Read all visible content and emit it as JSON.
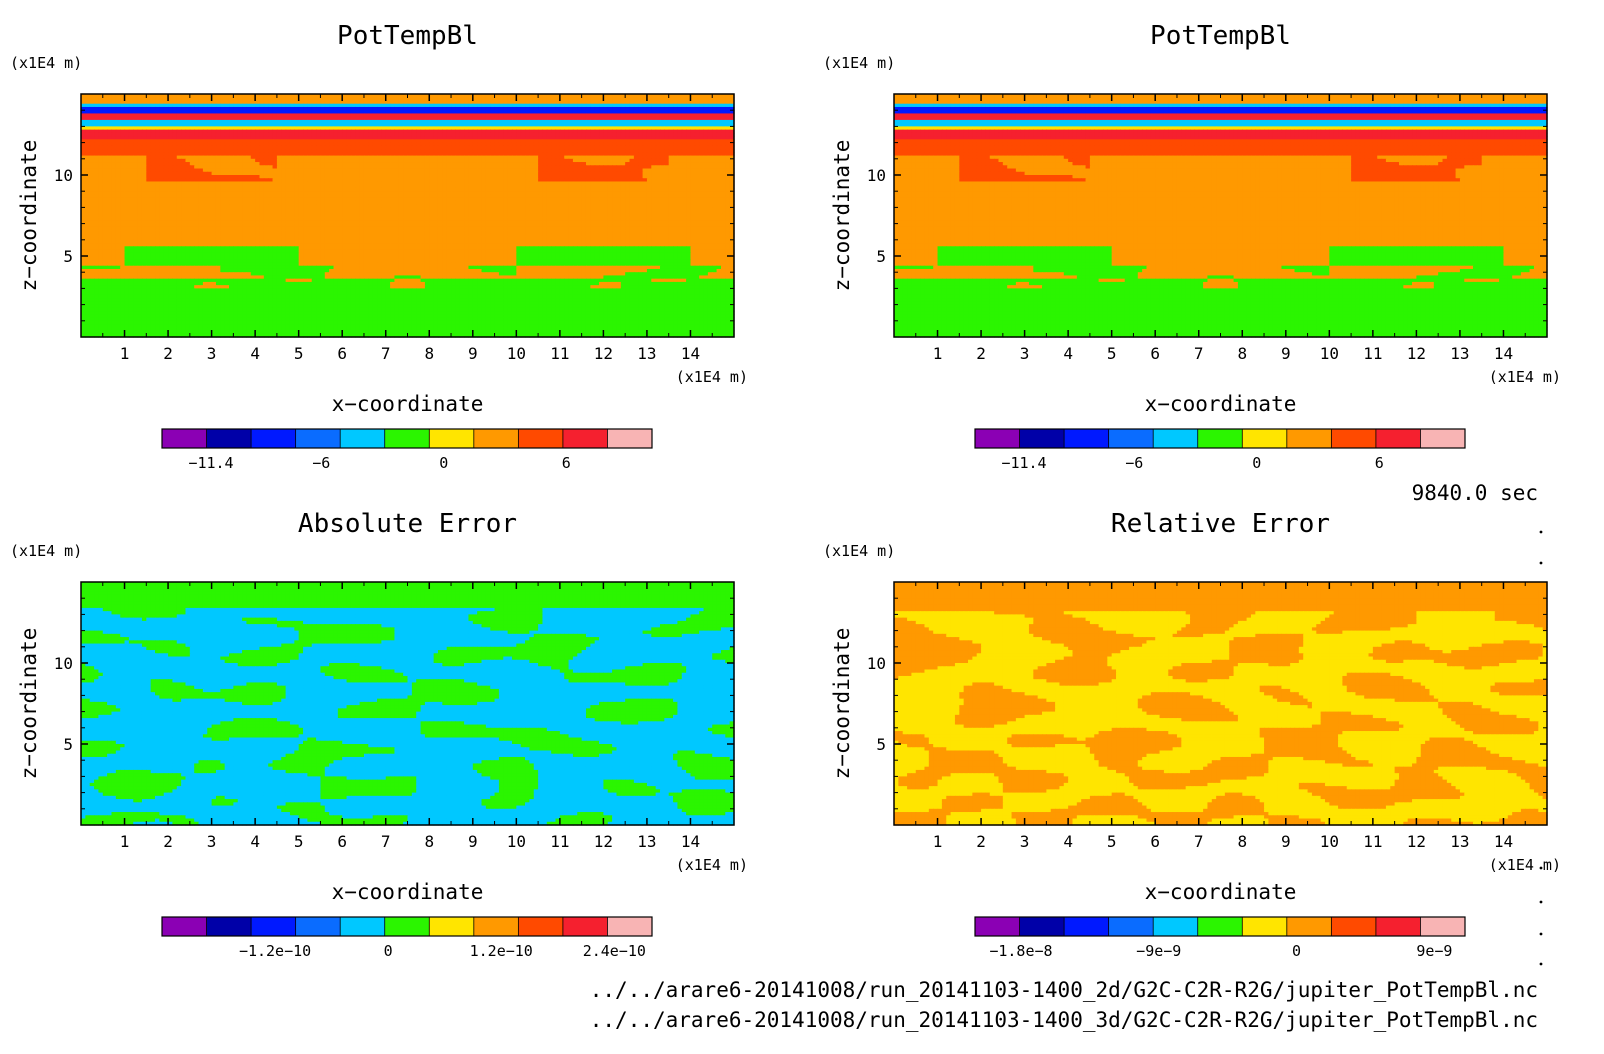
{
  "chart_data": [
    {
      "type": "heatmap",
      "title": "PotTempBl",
      "xlabel": "x−coordinate",
      "ylabel": "z−coordinate",
      "x_unit": "(x1E4 m)",
      "y_unit": "(x1E4 m)",
      "xlim": [
        0,
        15
      ],
      "ylim": [
        0,
        15
      ],
      "xticks": [
        "1",
        "2",
        "3",
        "4",
        "5",
        "6",
        "7",
        "8",
        "9",
        "10",
        "11",
        "12",
        "13",
        "14"
      ],
      "yticks": [
        "5",
        "10"
      ],
      "colorbar": {
        "range": [
          -13.8,
          10.2
        ],
        "tick_values": [
          -11.4,
          -6,
          0,
          6
        ],
        "tick_labels": [
          "−11.4",
          "−6",
          "0",
          "6"
        ],
        "colors": [
          "#8B00B4",
          "#0000A8",
          "#0019FF",
          "#0A6CFF",
          "#00C8FF",
          "#2BF500",
          "#FFE500",
          "#FF9900",
          "#FF4A00",
          "#F5202F",
          "#F8B4B4"
        ]
      },
      "pattern": "stratified"
    },
    {
      "type": "heatmap",
      "title": "PotTempBl",
      "xlabel": "x−coordinate",
      "ylabel": "z−coordinate",
      "x_unit": "(x1E4 m)",
      "y_unit": "(x1E4 m)",
      "xlim": [
        0,
        15
      ],
      "ylim": [
        0,
        15
      ],
      "xticks": [
        "1",
        "2",
        "3",
        "4",
        "5",
        "6",
        "7",
        "8",
        "9",
        "10",
        "11",
        "12",
        "13",
        "14"
      ],
      "yticks": [
        "5",
        "10"
      ],
      "colorbar": {
        "range": [
          -13.8,
          10.2
        ],
        "tick_values": [
          -11.4,
          -6,
          0,
          6
        ],
        "tick_labels": [
          "−11.4",
          "−6",
          "0",
          "6"
        ],
        "colors": [
          "#8B00B4",
          "#0000A8",
          "#0019FF",
          "#0A6CFF",
          "#00C8FF",
          "#2BF500",
          "#FFE500",
          "#FF9900",
          "#FF4A00",
          "#F5202F",
          "#F8B4B4"
        ]
      },
      "pattern": "stratified"
    },
    {
      "type": "heatmap",
      "title": "Absolute Error",
      "xlabel": "x−coordinate",
      "ylabel": "z−coordinate",
      "x_unit": "(x1E4 m)",
      "y_unit": "(x1E4 m)",
      "xlim": [
        0,
        15
      ],
      "ylim": [
        0,
        15
      ],
      "xticks": [
        "1",
        "2",
        "3",
        "4",
        "5",
        "6",
        "7",
        "8",
        "9",
        "10",
        "11",
        "12",
        "13",
        "14"
      ],
      "yticks": [
        "5",
        "10"
      ],
      "colorbar": {
        "range": [
          -2.4e-10,
          2.8e-10
        ],
        "tick_values": [
          -1.2e-10,
          0,
          1.2e-10,
          2.4e-10
        ],
        "tick_labels": [
          "−1.2e−10",
          "0",
          "1.2e−10",
          "2.4e−10"
        ],
        "colors": [
          "#8B00B4",
          "#0000A8",
          "#0019FF",
          "#0A6CFF",
          "#00C8FF",
          "#2BF500",
          "#FFE500",
          "#FF9900",
          "#FF4A00",
          "#F5202F",
          "#F8B4B4"
        ]
      },
      "pattern": "abs-error"
    },
    {
      "type": "heatmap",
      "title": "Relative Error",
      "xlabel": "x−coordinate",
      "ylabel": "z−coordinate",
      "x_unit": "(x1E4 m)",
      "y_unit": "(x1E4 m)",
      "xlim": [
        0,
        15
      ],
      "ylim": [
        0,
        15
      ],
      "xticks": [
        "1",
        "2",
        "3",
        "4",
        "5",
        "6",
        "7",
        "8",
        "9",
        "10",
        "11",
        "12",
        "13",
        "14"
      ],
      "yticks": [
        "5",
        "10"
      ],
      "colorbar": {
        "range": [
          -2.1e-08,
          1.1e-08
        ],
        "tick_values": [
          -1.8e-08,
          -9e-09,
          0,
          9e-09
        ],
        "tick_labels": [
          "−1.8e−8",
          "−9e−9",
          "0",
          "9e−9"
        ],
        "colors": [
          "#8B00B4",
          "#0000A8",
          "#0019FF",
          "#0A6CFF",
          "#00C8FF",
          "#2BF500",
          "#FFE500",
          "#FF9900",
          "#FF4A00",
          "#F5202F",
          "#F8B4B4"
        ]
      },
      "pattern": "rel-error"
    }
  ],
  "time_label": "9840.0 sec",
  "files": [
    "../../arare6-20141008/run_20141103-1400_2d/G2C-C2R-R2G/jupiter_PotTempBl.nc",
    "../../arare6-20141008/run_20141103-1400_3d/G2C-C2R-R2G/jupiter_PotTempBl.nc"
  ]
}
